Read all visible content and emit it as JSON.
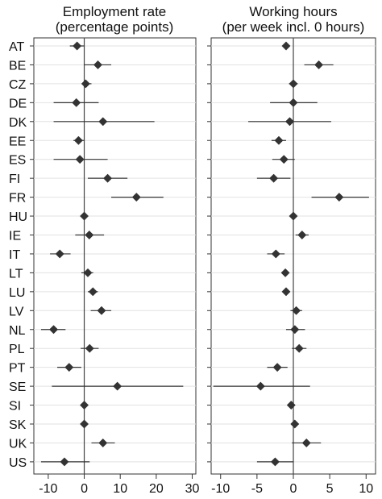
{
  "chart_data": [
    {
      "type": "scatter",
      "title": "Employment rate",
      "subtitle": "(percentage points)",
      "categories": [
        "AT",
        "BE",
        "CZ",
        "DE",
        "DK",
        "EE",
        "ES",
        "FI",
        "FR",
        "HU",
        "IE",
        "IT",
        "LT",
        "LU",
        "LV",
        "NL",
        "PL",
        "PT",
        "SE",
        "SI",
        "SK",
        "UK",
        "US"
      ],
      "x_ticks": [
        -10,
        0,
        10,
        20,
        30
      ],
      "xlim": [
        -14,
        31
      ],
      "reference_line": 0,
      "grid": "horizontal",
      "series": [
        {
          "estimates": [
            -2.0,
            3.8,
            0.4,
            -2.2,
            5.2,
            -1.6,
            -1.2,
            6.5,
            14.5,
            0.0,
            1.4,
            -6.8,
            1.0,
            2.4,
            4.8,
            -8.5,
            1.5,
            -4.2,
            9.2,
            0.0,
            0.0,
            5.2,
            -5.5
          ],
          "ci_low": [
            -4.0,
            0.0,
            -0.5,
            -8.5,
            -8.5,
            -3.0,
            -8.5,
            1.0,
            7.5,
            -0.3,
            -2.5,
            -9.5,
            -0.8,
            1.0,
            1.8,
            -12.0,
            -1.0,
            -7.5,
            -9.0,
            -0.5,
            -0.4,
            2.0,
            -12.0
          ],
          "ci_high": [
            0.0,
            7.5,
            2.0,
            4.0,
            19.5,
            0.0,
            6.5,
            12.0,
            22.0,
            0.3,
            5.5,
            -3.8,
            2.5,
            3.8,
            7.5,
            -5.2,
            4.0,
            -0.8,
            27.5,
            0.5,
            0.4,
            8.5,
            1.5
          ]
        }
      ]
    },
    {
      "type": "scatter",
      "title": "Working hours",
      "subtitle": "(per week incl. 0 hours)",
      "categories": [
        "AT",
        "BE",
        "CZ",
        "DE",
        "DK",
        "EE",
        "ES",
        "FI",
        "FR",
        "HU",
        "IE",
        "IT",
        "LT",
        "LU",
        "LV",
        "NL",
        "PL",
        "PT",
        "SE",
        "SI",
        "SK",
        "UK",
        "US"
      ],
      "x_ticks": [
        -10,
        -5,
        0,
        5,
        10
      ],
      "xlim": [
        -11.3,
        11.3
      ],
      "reference_line": 0,
      "grid": "horizontal",
      "series": [
        {
          "estimates": [
            -1.0,
            3.5,
            0.0,
            0.0,
            -0.5,
            -2.0,
            -1.3,
            -2.7,
            6.3,
            0.0,
            1.2,
            -2.4,
            -1.1,
            -1.0,
            0.4,
            0.2,
            0.8,
            -2.2,
            -4.5,
            -0.3,
            0.2,
            1.8,
            -2.5
          ],
          "ci_low": [
            -1.5,
            1.5,
            -0.6,
            -3.2,
            -6.2,
            -3.0,
            -2.9,
            -5.0,
            2.5,
            -0.5,
            0.3,
            -3.6,
            -1.5,
            -1.4,
            -0.4,
            -1.0,
            -0.2,
            -3.6,
            -11.0,
            -0.7,
            -0.3,
            -0.2,
            -5.0
          ],
          "ci_high": [
            -0.5,
            5.5,
            0.6,
            3.3,
            5.2,
            -1.0,
            0.2,
            -0.4,
            10.4,
            0.5,
            2.1,
            -1.2,
            -0.7,
            -0.6,
            1.2,
            1.6,
            1.8,
            -0.8,
            2.3,
            0.1,
            0.7,
            3.8,
            0.0
          ]
        }
      ]
    }
  ]
}
